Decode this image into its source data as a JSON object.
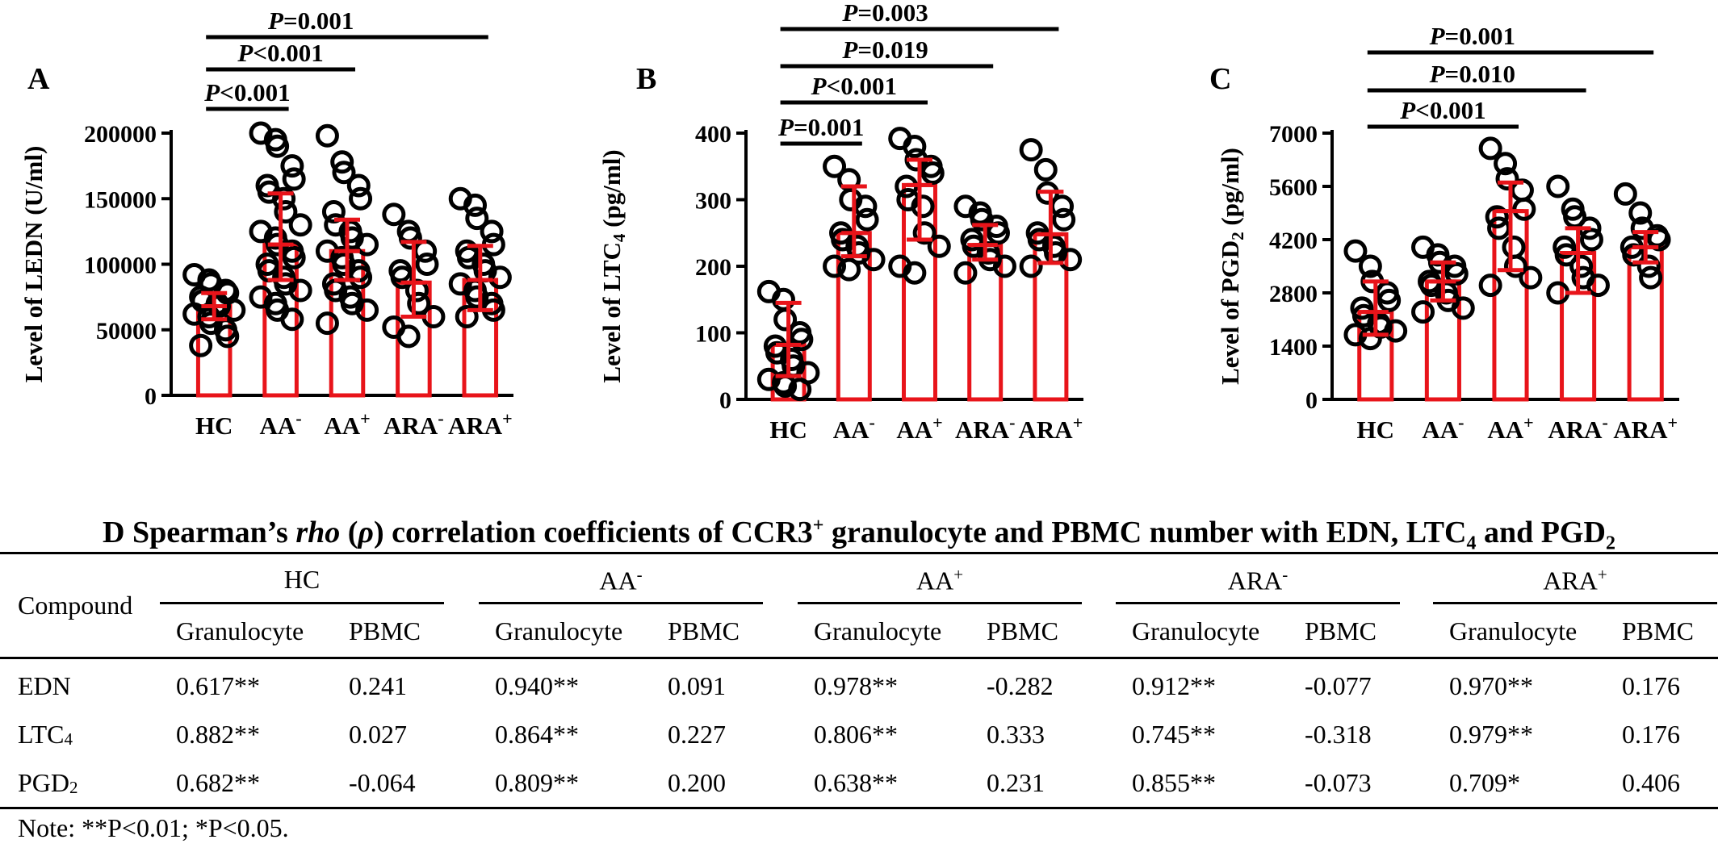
{
  "charts": [
    {
      "panel": "A",
      "type": "bar",
      "ylabel": "Level of LEDN (U/ml)",
      "yticks": [
        "0",
        "50000",
        "100000",
        "150000",
        "200000"
      ],
      "ymax": 200000,
      "categories": [
        {
          "base": "HC",
          "sup": ""
        },
        {
          "base": "AA",
          "sup": "-"
        },
        {
          "base": "AA",
          "sup": "+"
        },
        {
          "base": "ARA",
          "sup": "-"
        },
        {
          "base": "ARA",
          "sup": "+"
        }
      ],
      "values": [
        68000,
        115000,
        110000,
        86000,
        88000
      ],
      "errors": [
        [
          58000,
          78000
        ],
        [
          88000,
          154000
        ],
        [
          88000,
          134000
        ],
        [
          60000,
          117000
        ],
        [
          65000,
          114000
        ]
      ],
      "points": [
        [
          92000,
          88000,
          85000,
          80000,
          78000,
          75000,
          72000,
          70000,
          68000,
          65000,
          62000,
          60000,
          55000,
          50000,
          45000,
          38000
        ],
        [
          200000,
          195000,
          190000,
          175000,
          165000,
          160000,
          155000,
          150000,
          140000,
          130000,
          125000,
          120000,
          115000,
          110000,
          105000,
          100000,
          95000,
          90000,
          85000,
          80000,
          75000,
          70000,
          65000,
          58000
        ],
        [
          198000,
          178000,
          170000,
          160000,
          150000,
          140000,
          130000,
          125000,
          120000,
          115000,
          110000,
          105000,
          100000,
          95000,
          90000,
          85000,
          80000,
          75000,
          70000,
          65000,
          55000
        ],
        [
          138000,
          125000,
          120000,
          110000,
          100000,
          95000,
          90000,
          80000,
          70000,
          60000,
          52000,
          45000
        ],
        [
          150000,
          145000,
          135000,
          125000,
          115000,
          110000,
          105000,
          100000,
          95000,
          90000,
          85000,
          80000,
          75000,
          70000,
          65000,
          60000
        ]
      ],
      "brackets": [
        {
          "from": 0,
          "to": 1,
          "label": "<0.001"
        },
        {
          "from": 0,
          "to": 2,
          "label": "<0.001"
        },
        {
          "from": 0,
          "to": 4,
          "label": "=0.001"
        }
      ]
    },
    {
      "panel": "B",
      "type": "bar",
      "ylabel": "Level of LTC",
      "ylabel_sub": "4",
      "ylabel_tail": " (pg/ml)",
      "yticks": [
        "0",
        "100",
        "200",
        "300",
        "400"
      ],
      "ymax": 400,
      "categories": [
        {
          "base": "HC",
          "sup": ""
        },
        {
          "base": "AA",
          "sup": "-"
        },
        {
          "base": "AA",
          "sup": "+"
        },
        {
          "base": "ARA",
          "sup": "-"
        },
        {
          "base": "ARA",
          "sup": "+"
        }
      ],
      "values": [
        82,
        250,
        322,
        232,
        248
      ],
      "errors": [
        [
          35,
          145
        ],
        [
          215,
          320
        ],
        [
          240,
          360
        ],
        [
          210,
          262
        ],
        [
          205,
          312
        ]
      ],
      "points": [
        [
          162,
          150,
          120,
          100,
          90,
          80,
          70,
          60,
          50,
          40,
          30,
          25,
          20,
          15
        ],
        [
          350,
          330,
          300,
          290,
          270,
          250,
          240,
          230,
          220,
          210,
          200,
          195
        ],
        [
          392,
          380,
          360,
          350,
          340,
          320,
          300,
          290,
          250,
          230,
          200,
          190
        ],
        [
          290,
          280,
          270,
          260,
          250,
          240,
          230,
          220,
          210,
          200,
          190
        ],
        [
          375,
          345,
          310,
          290,
          270,
          250,
          240,
          230,
          220,
          210,
          200
        ]
      ],
      "brackets": [
        {
          "from": 0,
          "to": 1,
          "label": "=0.001"
        },
        {
          "from": 0,
          "to": 2,
          "label": "<0.001"
        },
        {
          "from": 0,
          "to": 3,
          "label": "=0.019"
        },
        {
          "from": 0,
          "to": 4,
          "label": "=0.003"
        }
      ]
    },
    {
      "panel": "C",
      "type": "bar",
      "ylabel": "Level of PGD",
      "ylabel_sub": "2",
      "ylabel_tail": " (pg/ml)",
      "yticks": [
        "0",
        "1400",
        "2800",
        "4200",
        "5600",
        "7000"
      ],
      "ymax": 7000,
      "categories": [
        {
          "base": "HC",
          "sup": ""
        },
        {
          "base": "AA",
          "sup": "-"
        },
        {
          "base": "AA",
          "sup": "+"
        },
        {
          "base": "ARA",
          "sup": "-"
        },
        {
          "base": "ARA",
          "sup": "+"
        }
      ],
      "values": [
        2300,
        3100,
        4950,
        3850,
        4000
      ],
      "errors": [
        [
          1700,
          3100
        ],
        [
          2600,
          3600
        ],
        [
          3400,
          5700
        ],
        [
          2800,
          4500
        ],
        [
          3600,
          4400
        ]
      ],
      "points": [
        [
          3900,
          3500,
          3100,
          2800,
          2600,
          2400,
          2200,
          2000,
          1900,
          1800,
          1700,
          1600
        ],
        [
          4000,
          3800,
          3600,
          3500,
          3300,
          3100,
          3000,
          2800,
          2600,
          2400,
          2300
        ],
        [
          6600,
          6200,
          5800,
          5500,
          5000,
          4800,
          4500,
          4000,
          3500,
          3200,
          3000
        ],
        [
          5600,
          5000,
          4800,
          4500,
          4200,
          4000,
          3800,
          3500,
          3200,
          3000,
          2800
        ],
        [
          5400,
          4900,
          4500,
          4300,
          4200,
          4000,
          3800,
          3500,
          3200
        ]
      ],
      "brackets": [
        {
          "from": 0,
          "to": 2,
          "label": "<0.001"
        },
        {
          "from": 0,
          "to": 3,
          "label": "=0.010"
        },
        {
          "from": 0,
          "to": 4,
          "label": "=0.001"
        }
      ]
    }
  ],
  "table": {
    "title_parts": {
      "panel": "D",
      "t1": " Spearman’s ",
      "rho": "rho",
      "t2": " (",
      "rho_sym": "ρ",
      "t3": ") correlation coefficients of CCR3",
      "sup": "+",
      "t4": " granulocyte and PBMC number with EDN, LTC",
      "sub1": "4",
      "t5": " and PGD",
      "sub2": "2"
    },
    "compound_header": "Compound",
    "groups": [
      {
        "base": "HC",
        "sup": ""
      },
      {
        "base": "AA",
        "sup": "-"
      },
      {
        "base": "AA",
        "sup": "+"
      },
      {
        "base": "ARA",
        "sup": "-"
      },
      {
        "base": "ARA",
        "sup": "+"
      }
    ],
    "subheaders": [
      "Granulocyte",
      "PBMC"
    ],
    "rows": [
      {
        "compound": "EDN",
        "sub": "",
        "values": [
          "0.617**",
          "0.241",
          "0.940**",
          "0.091",
          "0.978**",
          "-0.282",
          "0.912**",
          "-0.077",
          "0.970**",
          "0.176"
        ]
      },
      {
        "compound": "LTC",
        "sub": "4",
        "values": [
          "0.882**",
          "0.027",
          "0.864**",
          "0.227",
          "0.806**",
          "0.333",
          "0.745**",
          "-0.318",
          "0.979**",
          "0.176"
        ]
      },
      {
        "compound": "PGD",
        "sub": "2",
        "values": [
          "0.682**",
          "-0.064",
          "0.809**",
          "0.200",
          "0.638**",
          "0.231",
          "0.855**",
          "-0.073",
          "0.709*",
          "0.406"
        ]
      }
    ],
    "note": "Note: **P<0.01; *P<0.05."
  },
  "colors": {
    "bar": "#e8141a",
    "point": "#000000",
    "axis": "#000000"
  }
}
